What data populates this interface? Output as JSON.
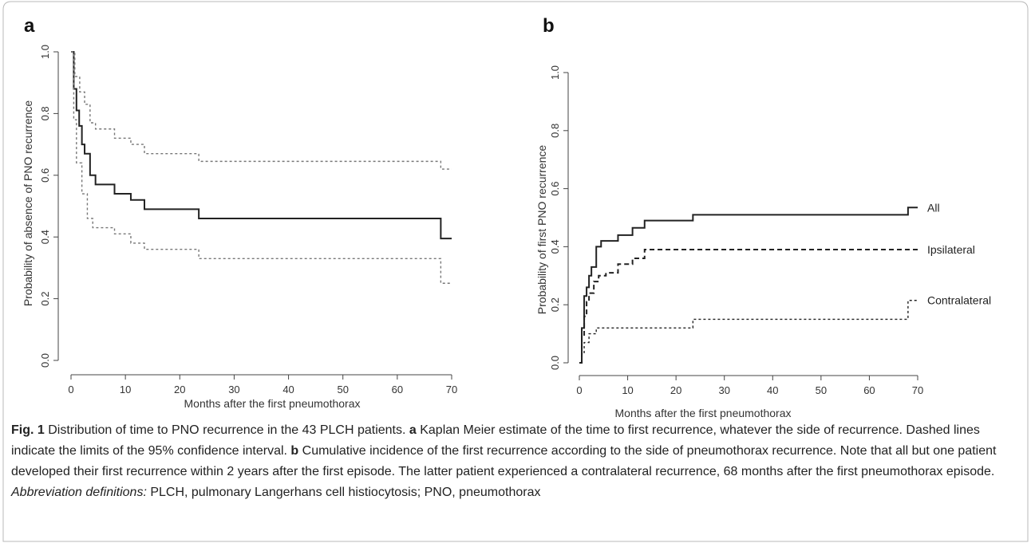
{
  "figure": {
    "caption": {
      "label": "Fig. 1",
      "intro": " Distribution of time to PNO recurrence in the 43 PLCH patients. ",
      "a_label": "a",
      "a_text": " Kaplan Meier estimate of the time to first recurrence, whatever the side of recurrence. Dashed lines indicate the limits of the 95% confidence interval. ",
      "b_label": "b",
      "b_text": " Cumulative incidence of the first recurrence according to the side of pneumothorax recurrence. Note that all but one patient developed their first recurrence within 2 years after the first episode. The latter patient experienced a contralateral recurrence, 68 months after the first pneumothorax episode. ",
      "abbr_label": "Abbreviation definitions:",
      "abbr_text": " PLCH, pulmonary Langerhans cell histiocytosis; PNO, pneumothorax"
    }
  },
  "chart_data": [
    {
      "panel": "a",
      "type": "line",
      "step": true,
      "xlabel": "Months after the first pneumothorax",
      "ylabel": "Probability of absence of PNO recurrence",
      "xlim": [
        0,
        70
      ],
      "ylim": [
        0,
        1
      ],
      "xticks": [
        "0",
        "10",
        "20",
        "30",
        "40",
        "50",
        "60",
        "70"
      ],
      "yticks": [
        "0.0",
        "0.2",
        "0.4",
        "0.6",
        "0.8",
        "1.0"
      ],
      "series": [
        {
          "style": "solid",
          "color": "#222222",
          "x": [
            0,
            0.5,
            1.0,
            1.5,
            2.0,
            2.5,
            3.5,
            4.5,
            8.0,
            11.0,
            13.5,
            23.5,
            68.0,
            70.0
          ],
          "y": [
            1.0,
            0.88,
            0.81,
            0.76,
            0.7,
            0.67,
            0.6,
            0.57,
            0.54,
            0.52,
            0.49,
            0.46,
            0.395,
            0.395
          ]
        },
        {
          "style": "dotted",
          "color": "#777777",
          "x": [
            0,
            0.7,
            1.6,
            2.5,
            3.5,
            4.5,
            8.0,
            11.0,
            13.5,
            23.5,
            68.0,
            70.0
          ],
          "y": [
            1.0,
            0.92,
            0.87,
            0.83,
            0.77,
            0.75,
            0.72,
            0.7,
            0.67,
            0.645,
            0.62,
            0.62
          ]
        },
        {
          "style": "dotted",
          "color": "#777777",
          "x": [
            0,
            0.5,
            1.0,
            2.0,
            3.0,
            4.0,
            8.0,
            11.0,
            13.5,
            23.5,
            68.0,
            70.0
          ],
          "y": [
            1.0,
            0.78,
            0.64,
            0.54,
            0.46,
            0.43,
            0.41,
            0.38,
            0.36,
            0.33,
            0.25,
            0.25
          ]
        }
      ]
    },
    {
      "panel": "b",
      "type": "line",
      "step": true,
      "xlabel": "Months after the first pneumothorax",
      "ylabel": "Probability of first PNO recurrence",
      "xlim": [
        0,
        70
      ],
      "ylim": [
        0,
        1
      ],
      "xticks": [
        "0",
        "10",
        "20",
        "30",
        "40",
        "50",
        "60",
        "70"
      ],
      "yticks": [
        "0.0",
        "0.2",
        "0.4",
        "0.6",
        "0.8",
        "1.0"
      ],
      "series": [
        {
          "name": "All",
          "style": "solid",
          "color": "#222222",
          "x": [
            0,
            0.5,
            1.0,
            1.5,
            2.0,
            2.5,
            3.5,
            4.5,
            8.0,
            11.0,
            13.5,
            23.5,
            68.0,
            70.0
          ],
          "y": [
            0,
            0.12,
            0.23,
            0.26,
            0.3,
            0.33,
            0.4,
            0.42,
            0.44,
            0.465,
            0.49,
            0.51,
            0.535,
            0.535
          ]
        },
        {
          "name": "Ipsilateral",
          "style": "dashed",
          "color": "#222222",
          "x": [
            0,
            0.5,
            1.0,
            1.5,
            2.0,
            3.0,
            4.0,
            5.5,
            8.0,
            11.0,
            13.5,
            70.0
          ],
          "y": [
            0,
            0.09,
            0.16,
            0.21,
            0.24,
            0.28,
            0.3,
            0.31,
            0.34,
            0.36,
            0.39,
            0.39
          ]
        },
        {
          "name": "Contralateral",
          "style": "dotted",
          "color": "#222222",
          "x": [
            0,
            0.5,
            1.0,
            2.0,
            3.5,
            23.5,
            68.0,
            70.0
          ],
          "y": [
            0,
            0.03,
            0.07,
            0.1,
            0.12,
            0.15,
            0.215,
            0.215
          ]
        }
      ]
    }
  ]
}
